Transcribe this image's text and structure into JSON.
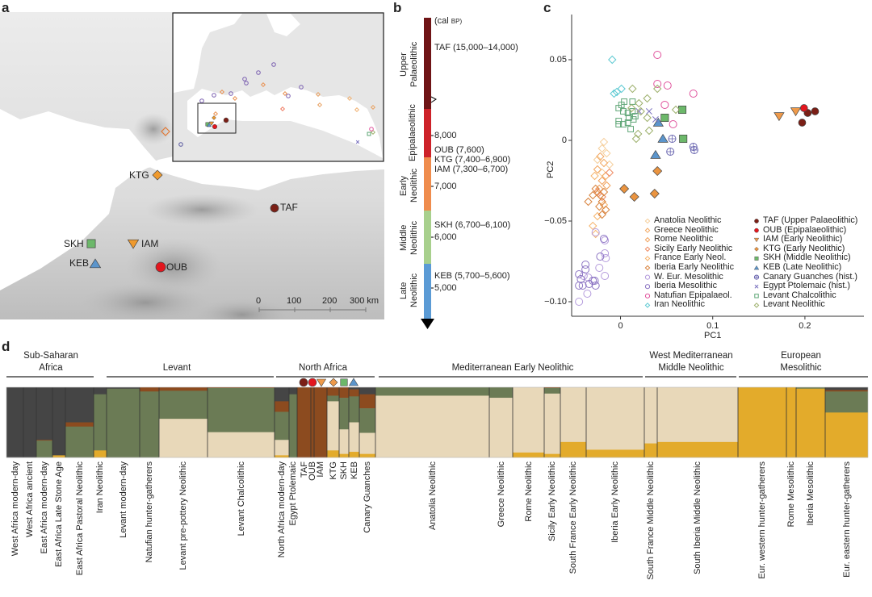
{
  "panels": {
    "a": "a",
    "b": "b",
    "c": "c",
    "d": "d"
  },
  "map": {
    "sites": [
      {
        "code": "KTG",
        "shape": "diamond",
        "color": "#ef9a2e",
        "filled": true
      },
      {
        "code": "TAF",
        "shape": "circle",
        "color": "#7b1f16",
        "filled": true
      },
      {
        "code": "SKH",
        "shape": "square",
        "color": "#6cb86a",
        "filled": true
      },
      {
        "code": "IAM",
        "shape": "tri-down",
        "color": "#ef9a2e",
        "filled": true
      },
      {
        "code": "KEB",
        "shape": "triangle",
        "color": "#5b95cc",
        "filled": true
      },
      {
        "code": "OUB",
        "shape": "circle",
        "color": "#e3161e",
        "filled": true
      }
    ],
    "scale": {
      "ticks": [
        "0",
        "100",
        "200",
        "300 km"
      ]
    }
  },
  "timeline": {
    "unit_open": "(cal",
    "unit_bp": "BP)",
    "unit_close": ")",
    "periods": [
      {
        "line1": "Upper",
        "line2": "Palaeolithic",
        "color": "#6f1416"
      },
      {
        "line1": "Epipalaeolithic",
        "line2": "",
        "color": "#cd2229"
      },
      {
        "line1": "Early",
        "line2": "Neolithic",
        "color": "#ef8c4d"
      },
      {
        "line1": "Middle",
        "line2": "Neolithic",
        "color": "#a8d08d"
      },
      {
        "line1": "Late",
        "line2": "Neolithic",
        "color": "#5b9bd5"
      }
    ],
    "labels": [
      "TAF (15,000–14,000)",
      "8,000",
      "OUB (7,600)",
      "KTG (7,400–6,900)",
      "IAM (7,300–6,700)",
      "7,000",
      "SKH (6,700–6,100)",
      "6,000",
      "KEB (5,700–5,600)",
      "5,000"
    ]
  },
  "chart_data": {
    "type": "scatter",
    "xlabel": "PC1",
    "ylabel": "PC2",
    "xlim": [
      -0.053,
      0.264
    ],
    "ylim": [
      -0.109,
      0.078
    ],
    "xticks": [
      "0",
      "0.1",
      "0.2"
    ],
    "xtick_values": [
      0,
      0.1,
      0.2
    ],
    "yticks": [
      "0.05",
      "0",
      "−0.05",
      "−0.10"
    ],
    "ytick_values": [
      0.05,
      0,
      -0.05,
      -0.1
    ],
    "grid": false,
    "legend_position": "bottom-right",
    "series": [
      {
        "name": "Anatolia Neolithic",
        "shape": "diamond",
        "color": "#f5cf9c",
        "filled": false,
        "points": [
          [
            -0.018,
            -0.001
          ],
          [
            -0.02,
            -0.005
          ],
          [
            -0.015,
            -0.008
          ],
          [
            -0.025,
            -0.012
          ],
          [
            -0.012,
            -0.015
          ],
          [
            -0.02,
            -0.02
          ]
        ]
      },
      {
        "name": "Greece Neolithic",
        "shape": "diamond",
        "color": "#f2a862",
        "filled": false,
        "points": [
          [
            -0.022,
            -0.01
          ],
          [
            -0.018,
            -0.014
          ],
          [
            -0.025,
            -0.018
          ],
          [
            -0.016,
            -0.022
          ]
        ]
      },
      {
        "name": "Rome Neolithic",
        "shape": "diamond",
        "color": "#f0a05a",
        "filled": false,
        "points": [
          [
            -0.02,
            -0.025
          ],
          [
            -0.015,
            -0.028
          ],
          [
            -0.023,
            -0.03
          ]
        ]
      },
      {
        "name": "Sicily Early Neolithic",
        "shape": "diamond",
        "color": "#ee8a62",
        "filled": false,
        "points": [
          [
            -0.012,
            -0.02
          ],
          [
            -0.02,
            -0.035
          ],
          [
            -0.025,
            -0.032
          ]
        ]
      },
      {
        "name": "France Early Neol.",
        "shape": "diamond",
        "color": "#f6b46c",
        "filled": false,
        "points": [
          [
            -0.028,
            -0.022
          ],
          [
            -0.018,
            -0.04
          ],
          [
            -0.03,
            -0.053
          ],
          [
            -0.025,
            -0.047
          ],
          [
            -0.027,
            -0.058
          ]
        ]
      },
      {
        "name": "Iberia Early Neolithic",
        "shape": "diamond",
        "color": "#d8823c",
        "filled": false,
        "points": [
          [
            -0.027,
            -0.03
          ],
          [
            -0.022,
            -0.034
          ],
          [
            -0.018,
            -0.032
          ],
          [
            -0.03,
            -0.034
          ],
          [
            -0.02,
            -0.038
          ],
          [
            -0.035,
            -0.038
          ],
          [
            -0.016,
            -0.043
          ],
          [
            -0.023,
            -0.041
          ],
          [
            -0.02,
            -0.046
          ]
        ]
      },
      {
        "name": "W. Eur. Mesolithic",
        "shape": "circle",
        "color": "#b49bdc",
        "filled": false,
        "points": [
          [
            -0.027,
            -0.057
          ],
          [
            -0.017,
            -0.062
          ],
          [
            -0.017,
            -0.07
          ],
          [
            -0.016,
            -0.073
          ],
          [
            -0.023,
            -0.079
          ],
          [
            -0.035,
            -0.085
          ],
          [
            -0.04,
            -0.084
          ],
          [
            -0.045,
            -0.1
          ],
          [
            -0.036,
            -0.095
          ],
          [
            -0.017,
            -0.084
          ]
        ]
      },
      {
        "name": "Iberia Mesolithic",
        "shape": "circle",
        "color": "#8a72c2",
        "filled": false,
        "points": [
          [
            -0.018,
            -0.061
          ],
          [
            -0.022,
            -0.072
          ],
          [
            -0.038,
            -0.077
          ],
          [
            -0.045,
            -0.083
          ],
          [
            -0.043,
            -0.086
          ],
          [
            -0.03,
            -0.087
          ],
          [
            -0.034,
            -0.089
          ],
          [
            -0.041,
            -0.09
          ],
          [
            -0.045,
            -0.09
          ],
          [
            -0.027,
            -0.09
          ],
          [
            -0.028,
            -0.087
          ],
          [
            -0.038,
            -0.08
          ]
        ]
      },
      {
        "name": "Natufian Epipalaeol.",
        "shape": "circle",
        "color": "#e0529c",
        "filled": false,
        "points": [
          [
            0.04,
            0.053
          ],
          [
            0.04,
            0.035
          ],
          [
            0.051,
            0.034
          ],
          [
            0.079,
            0.029
          ],
          [
            0.048,
            0.022
          ],
          [
            0.057,
            0.01
          ]
        ]
      },
      {
        "name": "Iran Neolithic",
        "shape": "diamond",
        "color": "#5cc9d2",
        "filled": false,
        "points": [
          [
            -0.009,
            0.05
          ],
          [
            0.001,
            0.032
          ],
          [
            -0.004,
            0.03
          ],
          [
            -0.007,
            0.029
          ]
        ]
      },
      {
        "name": "TAF (Upper Palaeolithic)",
        "shape": "circle",
        "color": "#7b1f16",
        "filled": true,
        "points": [
          [
            0.203,
            0.017
          ],
          [
            0.211,
            0.018
          ],
          [
            0.197,
            0.011
          ]
        ]
      },
      {
        "name": "OUB (Epipalaeolithic)",
        "shape": "circle",
        "color": "#e3161e",
        "filled": true,
        "points": [
          [
            0.199,
            0.02
          ]
        ]
      },
      {
        "name": "IAM (Early Neolithic)",
        "shape": "tri-down",
        "color": "#ef9a4a",
        "filled": true,
        "points": [
          [
            0.172,
            0.015
          ],
          [
            0.19,
            0.018
          ]
        ]
      },
      {
        "name": "KTG (Early Neolithic)",
        "shape": "diamond",
        "color": "#ea9440",
        "filled": true,
        "points": [
          [
            0.04,
            -0.019
          ],
          [
            0.004,
            -0.03
          ],
          [
            0.015,
            -0.035
          ],
          [
            0.037,
            -0.033
          ]
        ]
      },
      {
        "name": "SKH (Middle Neolithic)",
        "shape": "square",
        "color": "#6cb86a",
        "filled": true,
        "points": [
          [
            0.067,
            0.019
          ],
          [
            0.048,
            0.014
          ],
          [
            0.068,
            0.001
          ]
        ]
      },
      {
        "name": "KEB (Late Neolithic)",
        "shape": "triangle",
        "color": "#5b95cc",
        "filled": true,
        "points": [
          [
            0.041,
            0.011
          ],
          [
            0.046,
            0.001
          ],
          [
            0.038,
            -0.009
          ]
        ]
      },
      {
        "name": "Canary Guanches (hist.)",
        "shape": "circle-plus",
        "color": "#6a66b0",
        "filled": false,
        "points": [
          [
            0.056,
            0.001
          ],
          [
            0.054,
            -0.007
          ],
          [
            0.079,
            -0.004
          ],
          [
            0.08,
            -0.006
          ]
        ]
      },
      {
        "name": "Egypt Ptolemaic (hist.)",
        "shape": "x",
        "color": "#7c74c0",
        "filled": false,
        "points": [
          [
            0.031,
            0.018
          ],
          [
            0.02,
            0.018
          ],
          [
            0.038,
            0.013
          ]
        ]
      },
      {
        "name": "Levant Chalcolithic",
        "shape": "square",
        "color": "#5ea676",
        "filled": false,
        "points": [
          [
            0.001,
            0.022
          ],
          [
            0.004,
            0.024
          ],
          [
            -0.002,
            0.02
          ],
          [
            0.003,
            0.018
          ],
          [
            0.008,
            0.017
          ],
          [
            0.013,
            0.018
          ],
          [
            0.013,
            0.024
          ],
          [
            -0.002,
            0.012
          ],
          [
            -0.002,
            0.01
          ],
          [
            0.003,
            0.01
          ],
          [
            0.008,
            0.011
          ],
          [
            0.011,
            0.007
          ],
          [
            0.014,
            0.013
          ],
          [
            0.009,
            0.014
          ],
          [
            0.016,
            0.015
          ]
        ]
      },
      {
        "name": "Levant Neolithic",
        "shape": "diamond",
        "color": "#9db06c",
        "filled": false,
        "points": [
          [
            0.013,
            0.032
          ],
          [
            0.04,
            0.032
          ],
          [
            0.029,
            0.026
          ],
          [
            0.02,
            0.023
          ],
          [
            0.06,
            0.019
          ],
          [
            0.029,
            0.014
          ],
          [
            0.031,
            0.006
          ],
          [
            0.019,
            0.004
          ],
          [
            0.017,
            0.001
          ],
          [
            0.022,
            0.018
          ],
          [
            0.012,
            0.02
          ]
        ]
      }
    ]
  },
  "admixture": {
    "components": [
      "#454545",
      "#8c4b1f",
      "#6b7b55",
      "#e8d8b9",
      "#e3ab2b"
    ],
    "groups": [
      {
        "line1": "Sub-Saharan",
        "line2": "Africa"
      },
      {
        "line1": "",
        "line2": "Levant"
      },
      {
        "line1": "",
        "line2": "North Africa"
      },
      {
        "line1": "",
        "line2": "Mediterranean Early Neolithic"
      },
      {
        "line1": "West Mediterranean",
        "line2": "Middle Neolithic"
      },
      {
        "line1": "European",
        "line2": "Mesolithic"
      }
    ],
    "site_markers": [
      "TAF",
      "OUB",
      "IAM",
      "KTG",
      "SKH",
      "KEB"
    ],
    "populations": [
      {
        "label": "West Africa modern-day",
        "fractions": [
          1,
          0,
          0,
          0,
          0
        ]
      },
      {
        "label": "West Africa ancient",
        "fractions": [
          1,
          0,
          0,
          0,
          0
        ]
      },
      {
        "label": "East Africa modern-day",
        "fractions": [
          0.75,
          0.01,
          0.24,
          0,
          0
        ]
      },
      {
        "label": "East Africa Late Stone Age",
        "fractions": [
          0.97,
          0,
          0,
          0,
          0.03
        ]
      },
      {
        "label": "East Africa Pastoral Neolithic",
        "fractions": [
          0.5,
          0.06,
          0.44,
          0,
          0
        ]
      },
      {
        "label": "Iran Neolithic",
        "fractions": [
          0.1,
          0,
          0.8,
          0,
          0.1
        ]
      },
      {
        "label": "Levant modern-day",
        "fractions": [
          0.02,
          0,
          0.98,
          0,
          0
        ]
      },
      {
        "label": "Natufian hunter-gatherers",
        "fractions": [
          0,
          0.06,
          0.94,
          0,
          0
        ]
      },
      {
        "label": "Levant pre-pottery Neolithic",
        "fractions": [
          0,
          0.05,
          0.4,
          0.55,
          0
        ]
      },
      {
        "label": "Levant Chalcolithic",
        "fractions": [
          0,
          0.01,
          0.63,
          0.36,
          0
        ]
      },
      {
        "label": "North Africa modern-day",
        "fractions": [
          0.2,
          0.15,
          0.4,
          0.22,
          0.03
        ]
      },
      {
        "label": "Egypt Ptolemaic",
        "fractions": [
          0.1,
          0,
          0.9,
          0,
          0
        ]
      },
      {
        "label": "TAF",
        "fractions": [
          0,
          1,
          0,
          0,
          0
        ]
      },
      {
        "label": "OUB",
        "fractions": [
          0,
          1,
          0,
          0,
          0
        ]
      },
      {
        "label": "IAM",
        "fractions": [
          0,
          1,
          0,
          0,
          0
        ]
      },
      {
        "label": "KTG",
        "fractions": [
          0,
          0.12,
          0.08,
          0.7,
          0.1
        ]
      },
      {
        "label": "SKH",
        "fractions": [
          0,
          0.15,
          0.45,
          0.35,
          0.05
        ]
      },
      {
        "label": "KEB",
        "fractions": [
          0.03,
          0.1,
          0.37,
          0.42,
          0.08
        ]
      },
      {
        "label": "Canary Guanches",
        "fractions": [
          0.1,
          0.2,
          0.35,
          0.3,
          0.05
        ]
      },
      {
        "label": "Anatolia Neolithic",
        "fractions": [
          0,
          0,
          0.12,
          0.88,
          0
        ]
      },
      {
        "label": "Greece Neolithic",
        "fractions": [
          0,
          0,
          0.15,
          0.85,
          0
        ]
      },
      {
        "label": "Rome Neolithic",
        "fractions": [
          0,
          0,
          0,
          0.93,
          0.07
        ]
      },
      {
        "label": "Sicily Early Neolithic",
        "fractions": [
          0,
          0.01,
          0.08,
          0.86,
          0.05
        ]
      },
      {
        "label": "South France Early Neolithic",
        "fractions": [
          0,
          0,
          0,
          0.78,
          0.22
        ]
      },
      {
        "label": "Iberia Early Neolithic",
        "fractions": [
          0,
          0,
          0,
          0.89,
          0.11
        ]
      },
      {
        "label": "South France Middle Neolithic",
        "fractions": [
          0,
          0,
          0,
          0.8,
          0.2
        ]
      },
      {
        "label": "South Iberia Middle Neolithic",
        "fractions": [
          0,
          0,
          0,
          0.78,
          0.22
        ]
      },
      {
        "label": "Eur. western hunter-gatherers",
        "fractions": [
          0,
          0,
          0,
          0,
          1
        ]
      },
      {
        "label": "Rome Mesolithic",
        "fractions": [
          0,
          0,
          0,
          0,
          1
        ]
      },
      {
        "label": "Iberia Mesolithic",
        "fractions": [
          0,
          0,
          0.02,
          0,
          0.98
        ]
      },
      {
        "label": "Eur. eastern hunter-gatherers",
        "fractions": [
          0.04,
          0.02,
          0.3,
          0,
          0.64
        ]
      }
    ]
  }
}
